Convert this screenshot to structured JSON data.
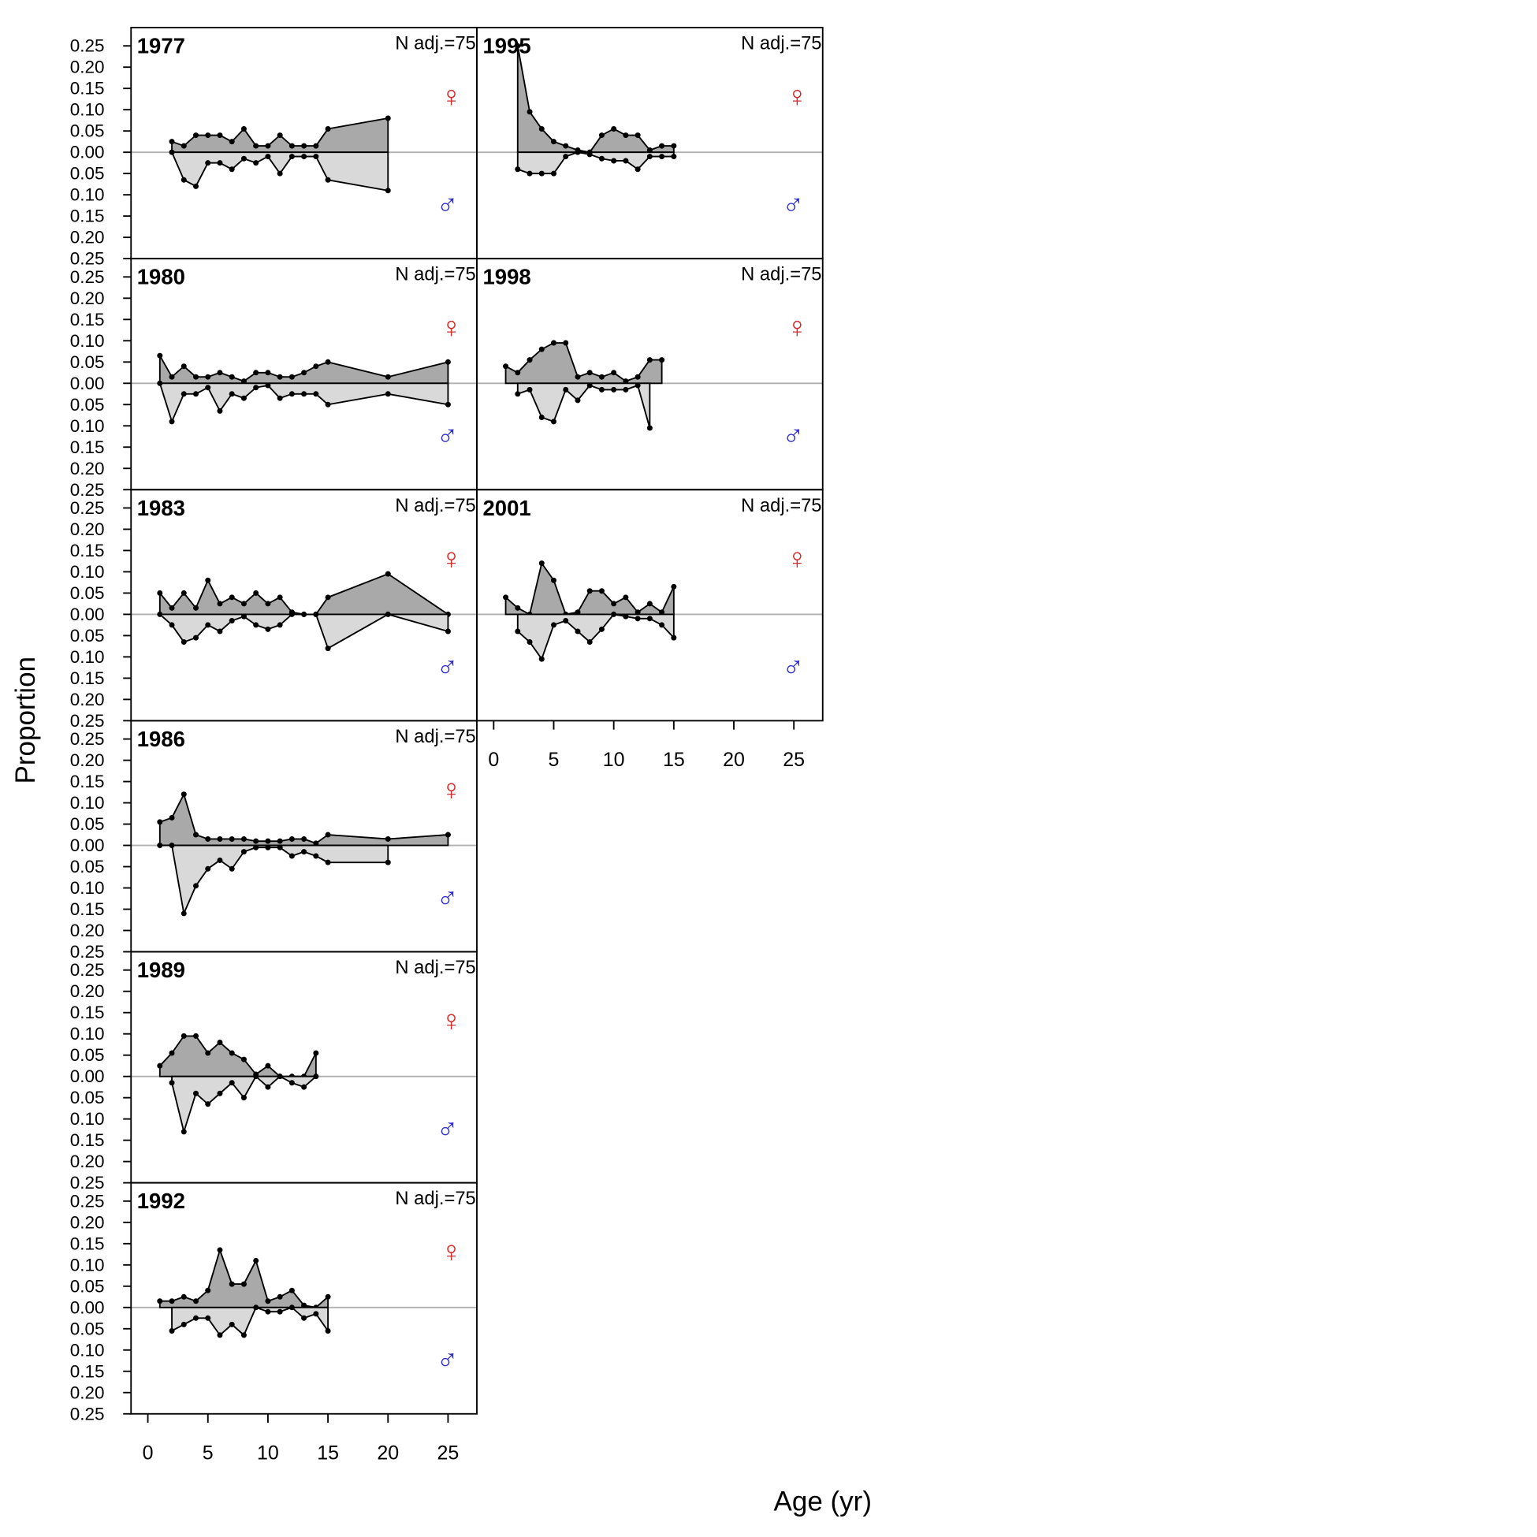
{
  "chart_data": {
    "type": "area",
    "x_label": "Age (yr)",
    "y_label": "Proportion",
    "xlim": [
      -1.4,
      27.4
    ],
    "xticks": [
      0,
      5,
      10,
      15,
      20,
      25
    ],
    "ylim": [
      -0.25,
      0.293
    ],
    "yticks": [
      {
        "value": -0.25,
        "label": "0.25"
      },
      {
        "value": -0.2,
        "label": "0.20"
      },
      {
        "value": -0.15,
        "label": "0.15"
      },
      {
        "value": -0.1,
        "label": "0.10"
      },
      {
        "value": -0.05,
        "label": "0.05"
      },
      {
        "value": 0,
        "label": "0.00"
      },
      {
        "value": 0.05,
        "label": "0.05"
      },
      {
        "value": 0.1,
        "label": "0.10"
      },
      {
        "value": 0.15,
        "label": "0.15"
      },
      {
        "value": 0.2,
        "label": "0.20"
      },
      {
        "value": 0.25,
        "label": "0.25"
      }
    ],
    "reference_line": 0,
    "sexes": [
      {
        "name": "♀",
        "color": "#d62728",
        "fill": "#a9a9a9"
      },
      {
        "name": "♂",
        "color": "#2f2fd0",
        "fill": "#d9d9d9"
      }
    ],
    "panels": [
      {
        "title": "1977",
        "note": "N adj.=75",
        "x": [
          2,
          3,
          4,
          5,
          6,
          7,
          8,
          9,
          10,
          11,
          12,
          13,
          14,
          15,
          20
        ],
        "female": [
          0.025,
          0.015,
          0.04,
          0.04,
          0.04,
          0.025,
          0.055,
          0.015,
          0.015,
          0.04,
          0.015,
          0.015,
          0.015,
          0.055,
          0.08
        ],
        "male": [
          0,
          -0.065,
          -0.08,
          -0.025,
          -0.025,
          -0.04,
          -0.015,
          -0.025,
          -0.01,
          -0.05,
          -0.01,
          -0.01,
          -0.01,
          -0.065,
          -0.09
        ]
      },
      {
        "title": "1980",
        "note": "N adj.=75",
        "x": [
          1,
          2,
          3,
          4,
          5,
          6,
          7,
          8,
          9,
          10,
          11,
          12,
          13,
          14,
          15,
          20,
          25
        ],
        "female": [
          0.065,
          0.015,
          0.04,
          0.015,
          0.015,
          0.025,
          0.015,
          0.005,
          0.025,
          0.025,
          0.015,
          0.015,
          0.025,
          0.04,
          0.05,
          0.015,
          0.05
        ],
        "male": [
          0,
          -0.09,
          -0.025,
          -0.025,
          -0.01,
          -0.065,
          -0.025,
          -0.035,
          -0.01,
          -0.005,
          -0.035,
          -0.025,
          -0.025,
          -0.025,
          -0.05,
          -0.025,
          -0.05
        ]
      },
      {
        "title": "1983",
        "note": "N adj.=75",
        "x": [
          1,
          2,
          3,
          4,
          5,
          6,
          7,
          8,
          9,
          10,
          11,
          12,
          13,
          14,
          15,
          20,
          25
        ],
        "female": [
          0.05,
          0.015,
          0.05,
          0.015,
          0.08,
          0.025,
          0.04,
          0.025,
          0.05,
          0.025,
          0.04,
          0.005,
          0,
          0,
          0.04,
          0.095,
          0
        ],
        "male": [
          0,
          -0.025,
          -0.065,
          -0.055,
          -0.025,
          -0.04,
          -0.015,
          -0.005,
          -0.025,
          -0.035,
          -0.025,
          0,
          0,
          0,
          -0.08,
          0,
          -0.04
        ]
      },
      {
        "title": "1986",
        "note": "N adj.=75",
        "x": [
          1,
          2,
          3,
          4,
          5,
          6,
          7,
          8,
          9,
          10,
          11,
          12,
          13,
          14,
          15,
          20,
          25
        ],
        "female": [
          0.055,
          0.065,
          0.12,
          0.025,
          0.015,
          0.015,
          0.015,
          0.015,
          0.01,
          0.01,
          0.01,
          0.015,
          0.015,
          0.005,
          0.025,
          0.015,
          0.025
        ],
        "male": [
          0,
          0,
          -0.16,
          -0.095,
          -0.055,
          -0.035,
          -0.055,
          -0.015,
          -0.005,
          -0.005,
          -0.005,
          -0.025,
          -0.015,
          -0.025,
          -0.04,
          -0.04,
          null
        ]
      },
      {
        "title": "1989",
        "note": "N adj.=75",
        "x": [
          1,
          2,
          3,
          4,
          5,
          6,
          7,
          8,
          9,
          10,
          11,
          12,
          13,
          14
        ],
        "female": [
          0.025,
          0.055,
          0.095,
          0.095,
          0.055,
          0.08,
          0.055,
          0.04,
          0.005,
          0.025,
          0,
          0,
          0,
          0.055
        ],
        "male": [
          null,
          -0.015,
          -0.13,
          -0.04,
          -0.065,
          -0.04,
          -0.015,
          -0.05,
          0,
          -0.025,
          0,
          -0.015,
          -0.025,
          0
        ]
      },
      {
        "title": "1992",
        "note": "N adj.=75",
        "x": [
          1,
          2,
          3,
          4,
          5,
          6,
          7,
          8,
          9,
          10,
          11,
          12,
          13,
          14,
          15
        ],
        "female": [
          0.015,
          0.015,
          0.025,
          0.015,
          0.04,
          0.135,
          0.055,
          0.055,
          0.11,
          0.015,
          0.025,
          0.04,
          0.005,
          0,
          0.025
        ],
        "male": [
          null,
          -0.055,
          -0.04,
          -0.025,
          -0.025,
          -0.065,
          -0.04,
          -0.065,
          0,
          -0.01,
          -0.01,
          0,
          -0.025,
          -0.015,
          -0.055
        ]
      },
      {
        "title": "1995",
        "note": "N adj.=75",
        "x": [
          2,
          3,
          4,
          5,
          6,
          7,
          8,
          9,
          10,
          11,
          12,
          13,
          14,
          15
        ],
        "female": [
          0.25,
          0.095,
          0.055,
          0.025,
          0.015,
          0.005,
          0,
          0.04,
          0.055,
          0.04,
          0.04,
          0.005,
          0.015,
          0.015
        ],
        "male": [
          -0.04,
          -0.05,
          -0.05,
          -0.05,
          -0.01,
          0,
          -0.005,
          -0.015,
          -0.02,
          -0.02,
          -0.04,
          -0.01,
          -0.01,
          -0.01
        ]
      },
      {
        "title": "1998",
        "note": "N adj.=75",
        "x": [
          1,
          2,
          3,
          4,
          5,
          6,
          7,
          8,
          9,
          10,
          11,
          12,
          13,
          14
        ],
        "female": [
          0.04,
          0.025,
          0.055,
          0.08,
          0.095,
          0.095,
          0.015,
          0.025,
          0.015,
          0.025,
          0.005,
          0.015,
          0.055,
          0.055
        ],
        "male": [
          null,
          -0.025,
          -0.015,
          -0.08,
          -0.09,
          -0.015,
          -0.04,
          -0.005,
          -0.015,
          -0.015,
          -0.015,
          -0.005,
          -0.105,
          null
        ]
      },
      {
        "title": "2001",
        "note": "N adj.=75",
        "x": [
          1,
          2,
          3,
          4,
          5,
          6,
          7,
          8,
          9,
          10,
          11,
          12,
          13,
          14,
          15
        ],
        "female": [
          0.04,
          0.015,
          0,
          0.12,
          0.08,
          0,
          0.005,
          0.055,
          0.055,
          0.025,
          0.04,
          0.005,
          0.025,
          0.005,
          0.065
        ],
        "male": [
          null,
          -0.04,
          -0.065,
          -0.105,
          -0.025,
          -0.015,
          -0.04,
          -0.065,
          -0.035,
          0,
          -0.005,
          -0.01,
          -0.01,
          -0.025,
          -0.055
        ]
      }
    ]
  }
}
